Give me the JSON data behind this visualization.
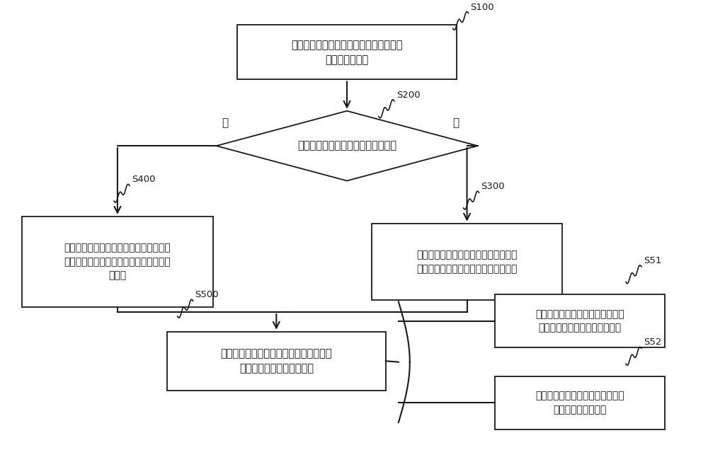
{
  "bg_color": "#ffffff",
  "line_color": "#1a1a1a",
  "box_color": "#ffffff",
  "text_color": "#1a1a1a",
  "s100_text": "获取光伏楼宇的历史运行数据，得到训练\n样本优化数据库",
  "s200_text": "判断当前时间是否处于高电价时段？",
  "s400_text": "计算光伏楼宇当前的光伏功率和基础负荷\n的能量差值，得到当前的优选的可平移负\n荷大小",
  "s300_text": "从训练样本优化数据库中确定优选训练\n样本，得到当前优选的可平移负荷大小",
  "s500_text": "根据得到的当前优选的可平移负荷大小调\n节光伏楼宇中的可平移负荷",
  "s51_text": "对当前优选的可平移负荷大小进行\n修正，得到实际可平移负荷大小",
  "s52_text": "按照实际可平移负荷大小调节光伏\n楼宇中的可平移负荷",
  "no_label": "否",
  "yes_label": "是"
}
